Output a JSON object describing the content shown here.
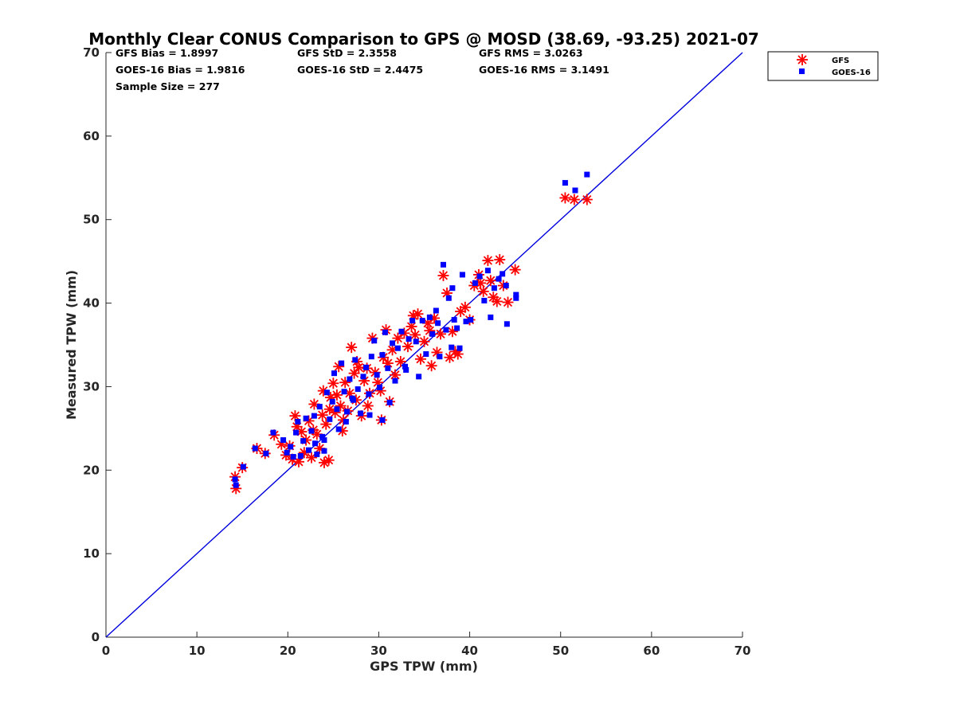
{
  "chart_data": {
    "type": "scatter",
    "title": "Monthly Clear CONUS Comparison to GPS @ MOSD (38.69, -93.25) 2021-07",
    "xlabel": "GPS TPW (mm)",
    "ylabel": "Measured TPW (mm)",
    "xlim": [
      0,
      70
    ],
    "ylim": [
      0,
      70
    ],
    "xticks": [
      "0",
      "10",
      "20",
      "30",
      "40",
      "50",
      "60",
      "70"
    ],
    "yticks": [
      "0",
      "10",
      "20",
      "30",
      "40",
      "50",
      "60",
      "70"
    ],
    "grid": false,
    "legend_position": "top-right",
    "reference_line": {
      "type": "one-to-one",
      "x": [
        0,
        70
      ],
      "y": [
        0,
        70
      ],
      "color": "#0000dd"
    },
    "stats": {
      "gfs_bias": "GFS Bias = 1.8997",
      "gfs_std": "GFS StD = 2.3558",
      "gfs_rms": "GFS RMS = 3.0263",
      "goes_bias": "GOES-16 Bias = 1.9816",
      "goes_std": "GOES-16 StD = 2.4475",
      "goes_rms": "GOES-16 RMS = 3.1491",
      "sample_size": "Sample Size = 277"
    },
    "series": [
      {
        "name": "GFS",
        "marker": "asterisk",
        "color": "#ff0000",
        "points": [
          [
            14.2,
            19.2
          ],
          [
            14.3,
            17.8
          ],
          [
            15.0,
            20.3
          ],
          [
            16.6,
            22.6
          ],
          [
            17.5,
            22.0
          ],
          [
            18.5,
            24.2
          ],
          [
            19.3,
            23.1
          ],
          [
            19.8,
            21.8
          ],
          [
            20.2,
            22.9
          ],
          [
            20.5,
            21.3
          ],
          [
            20.8,
            26.5
          ],
          [
            21.0,
            25.2
          ],
          [
            21.2,
            21.0
          ],
          [
            21.5,
            24.6
          ],
          [
            21.8,
            22.1
          ],
          [
            22.0,
            23.6
          ],
          [
            22.3,
            25.9
          ],
          [
            22.6,
            21.5
          ],
          [
            22.9,
            27.9
          ],
          [
            23.2,
            24.3
          ],
          [
            23.5,
            22.6
          ],
          [
            23.8,
            26.6
          ],
          [
            24.0,
            20.9
          ],
          [
            24.2,
            25.5
          ],
          [
            24.5,
            21.2
          ],
          [
            24.7,
            28.7
          ],
          [
            25.0,
            30.4
          ],
          [
            25.2,
            26.9
          ],
          [
            25.4,
            29.0
          ],
          [
            25.6,
            32.4
          ],
          [
            25.8,
            27.7
          ],
          [
            26.0,
            24.7
          ],
          [
            26.3,
            30.5
          ],
          [
            26.6,
            27.1
          ],
          [
            26.8,
            29.2
          ],
          [
            27.0,
            34.7
          ],
          [
            27.3,
            31.6
          ],
          [
            27.5,
            28.4
          ],
          [
            27.8,
            32.3
          ],
          [
            28.1,
            26.5
          ],
          [
            28.4,
            30.7
          ],
          [
            28.7,
            32.2
          ],
          [
            29.0,
            29.2
          ],
          [
            29.3,
            35.8
          ],
          [
            29.6,
            31.7
          ],
          [
            29.9,
            30.5
          ],
          [
            30.2,
            29.5
          ],
          [
            30.5,
            33.5
          ],
          [
            30.8,
            36.8
          ],
          [
            31.0,
            32.8
          ],
          [
            31.2,
            28.2
          ],
          [
            31.5,
            34.4
          ],
          [
            31.8,
            31.4
          ],
          [
            32.1,
            35.8
          ],
          [
            32.4,
            33.0
          ],
          [
            32.8,
            36.4
          ],
          [
            33.2,
            34.8
          ],
          [
            33.6,
            37.2
          ],
          [
            34.0,
            36.2
          ],
          [
            34.3,
            38.7
          ],
          [
            34.6,
            33.3
          ],
          [
            35.0,
            35.4
          ],
          [
            35.4,
            37.6
          ],
          [
            35.8,
            32.5
          ],
          [
            36.1,
            38.2
          ],
          [
            36.4,
            34.1
          ],
          [
            36.8,
            36.3
          ],
          [
            37.1,
            43.3
          ],
          [
            37.5,
            41.2
          ],
          [
            37.8,
            33.5
          ],
          [
            38.1,
            36.6
          ],
          [
            38.4,
            34.2
          ],
          [
            38.7,
            33.9
          ],
          [
            39.0,
            39.0
          ],
          [
            39.5,
            39.5
          ],
          [
            40.0,
            38.0
          ],
          [
            40.5,
            42.1
          ],
          [
            41.0,
            43.4
          ],
          [
            41.5,
            41.4
          ],
          [
            42.0,
            45.1
          ],
          [
            42.3,
            42.7
          ],
          [
            42.6,
            40.7
          ],
          [
            43.0,
            40.2
          ],
          [
            43.3,
            45.2
          ],
          [
            43.7,
            42.1
          ],
          [
            44.2,
            40.1
          ],
          [
            45.0,
            44.0
          ],
          [
            50.5,
            52.6
          ],
          [
            51.5,
            52.4
          ],
          [
            52.9,
            52.4
          ],
          [
            24.6,
            27.3
          ],
          [
            26.1,
            26.0
          ],
          [
            28.8,
            27.7
          ],
          [
            30.3,
            26.0
          ],
          [
            22.8,
            24.8
          ],
          [
            23.9,
            29.5
          ],
          [
            27.6,
            33.0
          ],
          [
            33.8,
            38.5
          ],
          [
            35.6,
            36.7
          ],
          [
            41.2,
            42.4
          ]
        ]
      },
      {
        "name": "GOES-16",
        "marker": "square",
        "color": "#0000ff",
        "points": [
          [
            14.2,
            18.9
          ],
          [
            14.3,
            18.2
          ],
          [
            15.1,
            20.4
          ],
          [
            16.4,
            22.6
          ],
          [
            17.6,
            22.0
          ],
          [
            18.4,
            24.5
          ],
          [
            19.5,
            23.6
          ],
          [
            19.9,
            22.1
          ],
          [
            20.3,
            22.8
          ],
          [
            20.6,
            21.6
          ],
          [
            20.9,
            24.5
          ],
          [
            21.1,
            25.8
          ],
          [
            21.4,
            21.7
          ],
          [
            21.7,
            23.5
          ],
          [
            22.0,
            26.2
          ],
          [
            22.3,
            22.4
          ],
          [
            22.6,
            24.7
          ],
          [
            22.9,
            26.5
          ],
          [
            23.2,
            21.9
          ],
          [
            23.5,
            27.6
          ],
          [
            23.8,
            24.0
          ],
          [
            24.0,
            22.3
          ],
          [
            24.3,
            29.3
          ],
          [
            24.6,
            26.1
          ],
          [
            24.9,
            28.2
          ],
          [
            25.1,
            31.6
          ],
          [
            25.4,
            27.3
          ],
          [
            25.6,
            24.9
          ],
          [
            25.9,
            32.8
          ],
          [
            26.2,
            29.4
          ],
          [
            26.5,
            27.0
          ],
          [
            26.8,
            30.9
          ],
          [
            27.1,
            28.6
          ],
          [
            27.4,
            33.2
          ],
          [
            27.7,
            29.7
          ],
          [
            28.0,
            26.8
          ],
          [
            28.3,
            31.2
          ],
          [
            28.6,
            32.3
          ],
          [
            28.9,
            29.1
          ],
          [
            29.2,
            33.6
          ],
          [
            29.5,
            35.5
          ],
          [
            29.8,
            31.4
          ],
          [
            30.1,
            29.9
          ],
          [
            30.4,
            33.8
          ],
          [
            30.7,
            36.5
          ],
          [
            31.0,
            32.2
          ],
          [
            31.2,
            28.1
          ],
          [
            31.5,
            35.2
          ],
          [
            31.8,
            30.7
          ],
          [
            32.1,
            34.6
          ],
          [
            32.5,
            36.6
          ],
          [
            32.9,
            32.4
          ],
          [
            33.3,
            35.7
          ],
          [
            33.7,
            37.9
          ],
          [
            34.1,
            35.4
          ],
          [
            34.4,
            31.2
          ],
          [
            34.8,
            37.9
          ],
          [
            35.2,
            33.9
          ],
          [
            35.6,
            38.3
          ],
          [
            35.9,
            36.3
          ],
          [
            36.3,
            39.1
          ],
          [
            36.7,
            33.6
          ],
          [
            37.1,
            44.6
          ],
          [
            37.4,
            36.8
          ],
          [
            37.7,
            40.6
          ],
          [
            38.0,
            34.7
          ],
          [
            38.3,
            38.0
          ],
          [
            38.6,
            37.0
          ],
          [
            38.9,
            34.6
          ],
          [
            39.2,
            43.4
          ],
          [
            39.6,
            37.8
          ],
          [
            40.1,
            38.0
          ],
          [
            40.6,
            42.4
          ],
          [
            41.1,
            43.2
          ],
          [
            41.6,
            40.3
          ],
          [
            42.0,
            43.9
          ],
          [
            42.3,
            38.3
          ],
          [
            42.7,
            41.8
          ],
          [
            43.2,
            42.9
          ],
          [
            43.6,
            43.5
          ],
          [
            44.0,
            42.1
          ],
          [
            44.1,
            37.5
          ],
          [
            45.1,
            41.0
          ],
          [
            45.1,
            40.6
          ],
          [
            50.5,
            54.4
          ],
          [
            51.6,
            53.5
          ],
          [
            52.9,
            55.4
          ],
          [
            24.0,
            23.6
          ],
          [
            26.4,
            25.8
          ],
          [
            29.0,
            26.6
          ],
          [
            30.4,
            26.0
          ],
          [
            23.0,
            23.2
          ],
          [
            27.2,
            28.4
          ],
          [
            33.0,
            32.0
          ],
          [
            36.5,
            37.6
          ],
          [
            38.1,
            41.8
          ]
        ]
      }
    ]
  }
}
